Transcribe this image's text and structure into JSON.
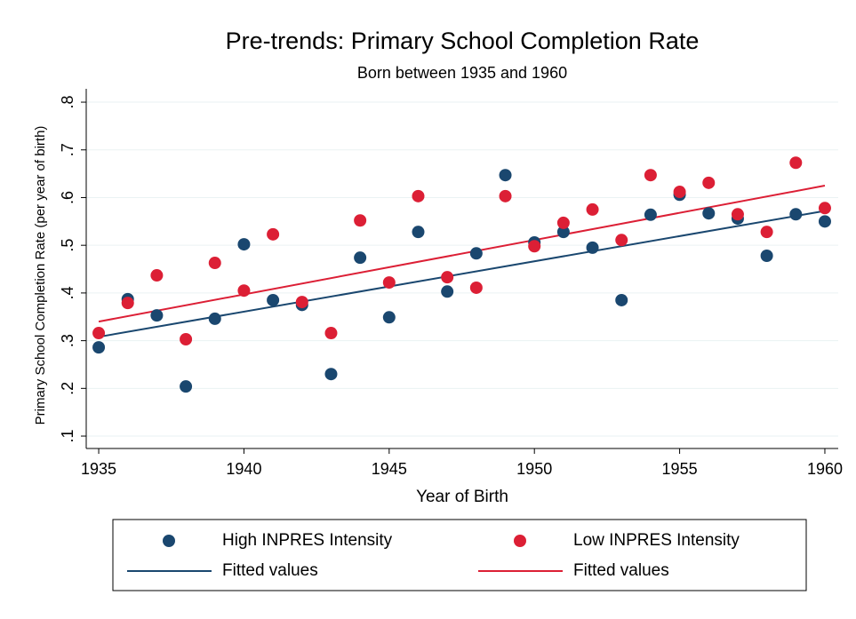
{
  "chart_data": {
    "type": "scatter",
    "title": "Pre-trends: Primary School Completion Rate",
    "subtitle": "Born between 1935 and 1960",
    "x_label": "Year of Birth",
    "y_label": "Primary School Completion Rate (per year of birth)",
    "x": [
      1935,
      1936,
      1937,
      1938,
      1939,
      1940,
      1941,
      1942,
      1943,
      1944,
      1945,
      1946,
      1947,
      1948,
      1949,
      1950,
      1951,
      1952,
      1953,
      1954,
      1955,
      1956,
      1957,
      1958,
      1959,
      1960
    ],
    "series": [
      {
        "name": "High INPRES Intensity",
        "mode": "markers",
        "color": "#1a476f",
        "values": [
          0.286,
          0.387,
          0.353,
          0.204,
          0.346,
          0.502,
          0.385,
          0.375,
          0.23,
          0.474,
          0.349,
          0.528,
          0.403,
          0.483,
          0.647,
          0.506,
          0.528,
          0.495,
          0.385,
          0.564,
          0.606,
          0.567,
          0.556,
          0.478,
          0.565,
          0.55
        ]
      },
      {
        "name": "Low INPRES Intensity",
        "mode": "markers",
        "color": "#dc1f35",
        "values": [
          0.316,
          0.379,
          0.437,
          0.303,
          0.463,
          0.405,
          0.523,
          0.381,
          0.316,
          0.552,
          0.422,
          0.603,
          0.433,
          0.411,
          0.603,
          0.498,
          0.547,
          0.575,
          0.511,
          0.647,
          0.612,
          0.631,
          0.565,
          0.528,
          0.673,
          0.578
        ]
      },
      {
        "name": "Fitted values",
        "mode": "line",
        "color": "#1a476f",
        "x": [
          1935,
          1960
        ],
        "values": [
          0.308,
          0.572
        ]
      },
      {
        "name": "Fitted values",
        "mode": "line",
        "color": "#dc1f35",
        "x": [
          1935,
          1960
        ],
        "values": [
          0.34,
          0.625
        ]
      }
    ],
    "xlim": [
      1934.57,
      1960.46
    ],
    "ylim": [
      0.074,
      0.828
    ],
    "xticks": [
      1935,
      1940,
      1945,
      1950,
      1955,
      1960
    ],
    "yticks": [
      {
        "value": 0.1,
        "label": ".1"
      },
      {
        "value": 0.2,
        "label": ".2"
      },
      {
        "value": 0.3,
        "label": ".3"
      },
      {
        "value": 0.4,
        "label": ".4"
      },
      {
        "value": 0.5,
        "label": ".5"
      },
      {
        "value": 0.6,
        "label": ".6"
      },
      {
        "value": 0.7,
        "label": ".7"
      },
      {
        "value": 0.8,
        "label": ".8"
      }
    ],
    "grid": true,
    "legend_position": "bottom"
  }
}
